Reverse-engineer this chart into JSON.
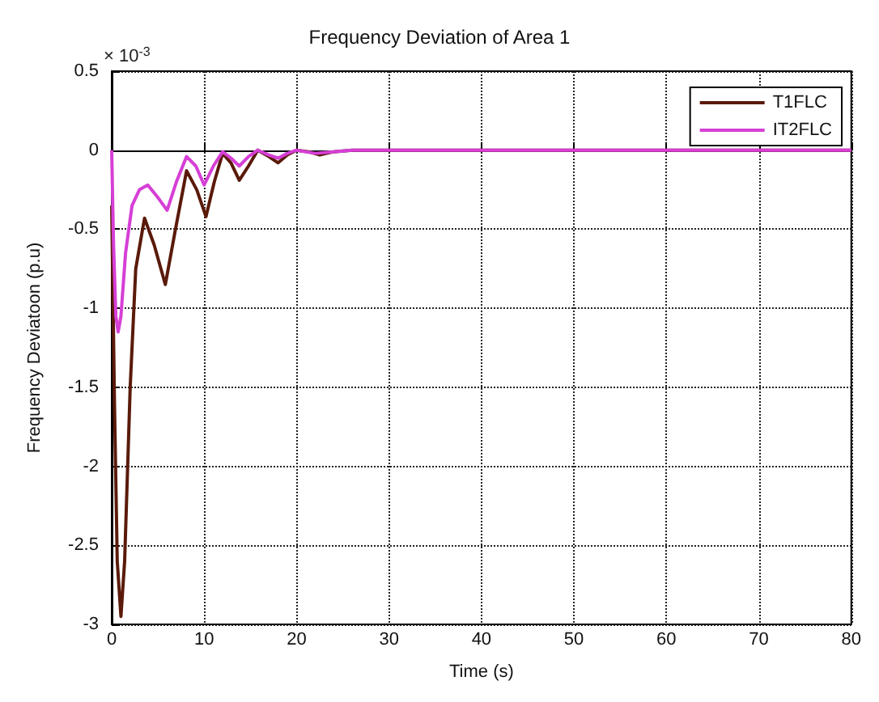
{
  "chart_data": {
    "type": "line",
    "title": "Frequency Deviation of Area 1",
    "xlabel": "Time (s)",
    "ylabel": "Frequency Deviatoon (p.u)",
    "annotations": [
      "× 10$^{-3}$"
    ],
    "xlim": [
      0,
      80
    ],
    "xticks": [
      0,
      10,
      20,
      30,
      40,
      50,
      60,
      70,
      80
    ],
    "ylim": [
      -3,
      0.5
    ],
    "yticks": [
      -3,
      -2.5,
      -2,
      -1.5,
      -1,
      -0.5,
      0,
      0.5
    ],
    "grid": true,
    "legend": "top right",
    "line_style": "solid",
    "marker": "none",
    "series": [
      {
        "name": "T1FLC",
        "color": "#5a1a0a",
        "x": [
          0,
          0.3,
          0.6,
          1,
          1.4,
          2,
          2.6,
          3.55,
          4.6,
          5.8,
          6.9,
          8.1,
          9.2,
          10.2,
          11.1,
          12,
          12.9,
          13.8,
          14.8,
          15.8,
          17,
          18,
          19,
          20,
          21.3,
          22.5,
          24,
          26,
          30,
          40,
          60,
          80
        ],
        "values": [
          -0.35,
          -1.6,
          -2.6,
          -2.95,
          -2.6,
          -1.5,
          -0.75,
          -0.43,
          -0.6,
          -0.85,
          -0.5,
          -0.13,
          -0.25,
          -0.42,
          -0.2,
          -0.02,
          -0.08,
          -0.19,
          -0.1,
          0,
          -0.04,
          -0.08,
          -0.03,
          0,
          -0.01,
          -0.03,
          -0.01,
          0,
          0,
          0,
          0,
          0
        ]
      },
      {
        "name": "IT2FLC",
        "color": "#d63fd6",
        "x": [
          0,
          0.2,
          0.45,
          0.7,
          1,
          1.5,
          2.2,
          3,
          3.9,
          5,
          6,
          7,
          8.1,
          9.1,
          10,
          11,
          12,
          12.9,
          13.8,
          14.8,
          15.8,
          17,
          18,
          19,
          20,
          22,
          24,
          26,
          30,
          40,
          60,
          80
        ],
        "values": [
          0,
          -0.6,
          -1.05,
          -1.15,
          -1.05,
          -0.65,
          -0.35,
          -0.25,
          -0.22,
          -0.3,
          -0.38,
          -0.2,
          -0.04,
          -0.1,
          -0.22,
          -0.1,
          -0.01,
          -0.05,
          -0.1,
          -0.04,
          0,
          -0.03,
          -0.05,
          -0.02,
          0,
          -0.02,
          -0.01,
          0,
          0,
          0,
          0,
          0
        ]
      }
    ]
  }
}
